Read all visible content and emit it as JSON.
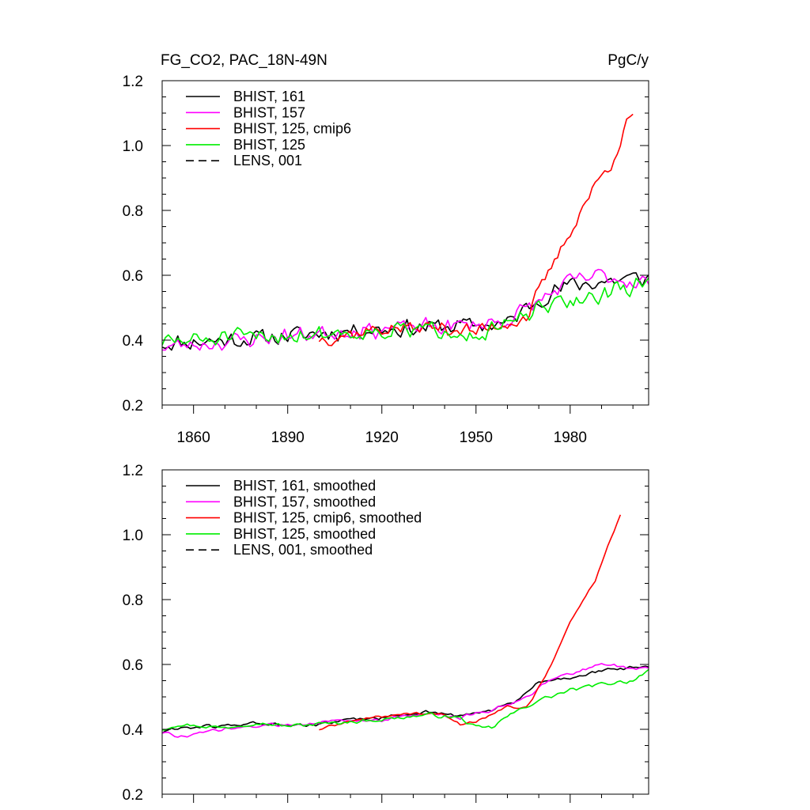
{
  "chart_data": [
    {
      "type": "line",
      "title": "FG_CO2, PAC_18N-49N",
      "units": "PgC/y",
      "xlim": [
        1850,
        2005
      ],
      "ylim": [
        0.2,
        1.2
      ],
      "xticks": [
        1860,
        1890,
        1920,
        1950,
        1980
      ],
      "xtick_labels": [
        "1860",
        "1890",
        "1920",
        "1950",
        "1980"
      ],
      "yticks": [
        0.2,
        0.4,
        0.6,
        0.8,
        1.0,
        1.2
      ],
      "ytick_labels": [
        "0.2",
        "0.4",
        "0.6",
        "0.8",
        "1.0",
        "1.2"
      ],
      "legend_position": "top-left",
      "series": [
        {
          "name": "BHIST, 161",
          "color": "#000000",
          "dash": "solid",
          "seed": 11,
          "noise": 0.034,
          "anchors": [
            [
              1850,
              0.39
            ],
            [
              1880,
              0.405
            ],
            [
              1910,
              0.43
            ],
            [
              1945,
              0.445
            ],
            [
              1960,
              0.45
            ],
            [
              1970,
              0.53
            ],
            [
              1980,
              0.57
            ],
            [
              2000,
              0.59
            ],
            [
              2005,
              0.59
            ]
          ]
        },
        {
          "name": "BHIST, 157",
          "color": "#ff00ff",
          "dash": "solid",
          "seed": 23,
          "noise": 0.032,
          "anchors": [
            [
              1850,
              0.38
            ],
            [
              1860,
              0.385
            ],
            [
              1880,
              0.405
            ],
            [
              1910,
              0.43
            ],
            [
              1945,
              0.445
            ],
            [
              1960,
              0.46
            ],
            [
              1970,
              0.52
            ],
            [
              1980,
              0.58
            ],
            [
              1990,
              0.6
            ],
            [
              2000,
              0.58
            ],
            [
              2005,
              0.58
            ]
          ]
        },
        {
          "name": "BHIST, 125, cmip6",
          "color": "#ff0000",
          "dash": "solid",
          "seed": 37,
          "noise": 0.03,
          "x_end": 2000,
          "anchors": [
            [
              1900,
              0.405
            ],
            [
              1920,
              0.435
            ],
            [
              1940,
              0.44
            ],
            [
              1950,
              0.425
            ],
            [
              1960,
              0.455
            ],
            [
              1966,
              0.47
            ],
            [
              1975,
              0.64
            ],
            [
              1985,
              0.83
            ],
            [
              1993,
              0.95
            ],
            [
              2000,
              1.1
            ]
          ]
        },
        {
          "name": "BHIST, 125",
          "color": "#00ee00",
          "dash": "solid",
          "seed": 51,
          "noise": 0.034,
          "anchors": [
            [
              1850,
              0.395
            ],
            [
              1880,
              0.41
            ],
            [
              1910,
              0.425
            ],
            [
              1945,
              0.435
            ],
            [
              1950,
              0.41
            ],
            [
              1958,
              0.44
            ],
            [
              1970,
              0.49
            ],
            [
              1980,
              0.52
            ],
            [
              1990,
              0.54
            ],
            [
              2000,
              0.56
            ],
            [
              2005,
              0.6
            ]
          ]
        }
      ],
      "legend": [
        {
          "name": "BHIST, 161",
          "color": "#000000",
          "dash": "solid"
        },
        {
          "name": "BHIST, 157",
          "color": "#ff00ff",
          "dash": "solid"
        },
        {
          "name": "BHIST, 125, cmip6",
          "color": "#ff0000",
          "dash": "solid"
        },
        {
          "name": "BHIST, 125",
          "color": "#00ee00",
          "dash": "solid"
        },
        {
          "name": "LENS, 001",
          "color": "#000000",
          "dash": "dashed"
        }
      ]
    },
    {
      "type": "line",
      "title": "",
      "units": "",
      "xlim": [
        1850,
        2005
      ],
      "ylim": [
        0.2,
        1.2
      ],
      "xticks": [
        1860,
        1890,
        1920,
        1950,
        1980
      ],
      "xtick_labels": [],
      "yticks": [
        0.2,
        0.4,
        0.6,
        0.8,
        1.0,
        1.2
      ],
      "ytick_labels": [
        "0.2",
        "0.4",
        "0.6",
        "0.8",
        "1.0",
        "1.2"
      ],
      "legend_position": "top-left",
      "series": [
        {
          "name": "BHIST, 161, smoothed",
          "color": "#000000",
          "dash": "solid",
          "seed": 61,
          "noise": 0.007,
          "anchors": [
            [
              1850,
              0.39
            ],
            [
              1855,
              0.405
            ],
            [
              1870,
              0.41
            ],
            [
              1880,
              0.42
            ],
            [
              1890,
              0.41
            ],
            [
              1900,
              0.415
            ],
            [
              1910,
              0.43
            ],
            [
              1920,
              0.435
            ],
            [
              1935,
              0.455
            ],
            [
              1945,
              0.44
            ],
            [
              1955,
              0.46
            ],
            [
              1962,
              0.48
            ],
            [
              1970,
              0.545
            ],
            [
              1980,
              0.56
            ],
            [
              1990,
              0.58
            ],
            [
              2000,
              0.59
            ],
            [
              2005,
              0.59
            ]
          ]
        },
        {
          "name": "BHIST, 157, smoothed",
          "color": "#ff00ff",
          "dash": "solid",
          "seed": 73,
          "noise": 0.007,
          "anchors": [
            [
              1850,
              0.39
            ],
            [
              1858,
              0.375
            ],
            [
              1865,
              0.395
            ],
            [
              1880,
              0.41
            ],
            [
              1890,
              0.415
            ],
            [
              1905,
              0.425
            ],
            [
              1920,
              0.43
            ],
            [
              1935,
              0.45
            ],
            [
              1945,
              0.435
            ],
            [
              1955,
              0.46
            ],
            [
              1965,
              0.495
            ],
            [
              1975,
              0.56
            ],
            [
              1985,
              0.585
            ],
            [
              1990,
              0.605
            ],
            [
              2000,
              0.585
            ],
            [
              2005,
              0.59
            ]
          ]
        },
        {
          "name": "BHIST, 125, cmip6, smoothed",
          "color": "#ff0000",
          "dash": "solid",
          "seed": 89,
          "noise": 0.005,
          "x_end": 1996,
          "anchors": [
            [
              1900,
              0.4
            ],
            [
              1910,
              0.425
            ],
            [
              1920,
              0.44
            ],
            [
              1930,
              0.45
            ],
            [
              1940,
              0.445
            ],
            [
              1945,
              0.415
            ],
            [
              1950,
              0.425
            ],
            [
              1960,
              0.47
            ],
            [
              1966,
              0.465
            ],
            [
              1972,
              0.56
            ],
            [
              1980,
              0.73
            ],
            [
              1988,
              0.86
            ],
            [
              1996,
              1.065
            ]
          ]
        },
        {
          "name": "BHIST, 125, smoothed",
          "color": "#00ee00",
          "dash": "solid",
          "seed": 97,
          "noise": 0.007,
          "anchors": [
            [
              1850,
              0.4
            ],
            [
              1855,
              0.415
            ],
            [
              1870,
              0.405
            ],
            [
              1880,
              0.42
            ],
            [
              1890,
              0.41
            ],
            [
              1905,
              0.42
            ],
            [
              1920,
              0.43
            ],
            [
              1935,
              0.445
            ],
            [
              1945,
              0.435
            ],
            [
              1950,
              0.405
            ],
            [
              1955,
              0.405
            ],
            [
              1960,
              0.44
            ],
            [
              1970,
              0.49
            ],
            [
              1980,
              0.52
            ],
            [
              1990,
              0.54
            ],
            [
              2000,
              0.55
            ],
            [
              2005,
              0.585
            ]
          ]
        }
      ],
      "legend": [
        {
          "name": "BHIST, 161, smoothed",
          "color": "#000000",
          "dash": "solid"
        },
        {
          "name": "BHIST, 157, smoothed",
          "color": "#ff00ff",
          "dash": "solid"
        },
        {
          "name": "BHIST, 125, cmip6, smoothed",
          "color": "#ff0000",
          "dash": "solid"
        },
        {
          "name": "BHIST, 125, smoothed",
          "color": "#00ee00",
          "dash": "solid"
        },
        {
          "name": "LENS, 001, smoothed",
          "color": "#000000",
          "dash": "dashed"
        }
      ]
    }
  ]
}
